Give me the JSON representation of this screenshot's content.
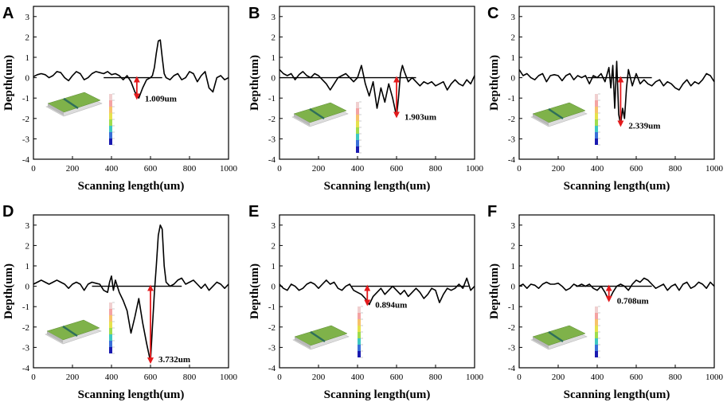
{
  "chart_data": [
    {
      "panel": "A",
      "type": "line",
      "xlabel": "Scanning length(um)",
      "ylabel": "Depth(um)",
      "xlim": [
        0,
        1000
      ],
      "ylim": [
        -4,
        3.5
      ],
      "xticks": [
        0,
        200,
        400,
        600,
        800,
        1000
      ],
      "yticks": [
        -4,
        -3,
        -2,
        -1,
        0,
        1,
        2,
        3
      ],
      "x": [
        0,
        20,
        40,
        60,
        80,
        100,
        120,
        140,
        160,
        180,
        200,
        220,
        240,
        260,
        280,
        300,
        320,
        340,
        360,
        380,
        400,
        420,
        440,
        460,
        480,
        500,
        520,
        540,
        560,
        580,
        600,
        610,
        620,
        630,
        640,
        650,
        660,
        670,
        680,
        700,
        720,
        740,
        760,
        780,
        800,
        820,
        840,
        860,
        880,
        900,
        920,
        940,
        960,
        980,
        1000
      ],
      "y": [
        0.05,
        0.15,
        0.2,
        0.15,
        0,
        0.1,
        0.3,
        0.25,
        0,
        -0.15,
        0.1,
        0.3,
        0.2,
        -0.1,
        0,
        0.2,
        0.3,
        0.25,
        0.2,
        0.3,
        0.15,
        0.2,
        0.1,
        -0.1,
        0.1,
        -0.2,
        -0.7,
        -1.0,
        -0.5,
        -0.1,
        0,
        0.1,
        0.5,
        1.2,
        1.8,
        1.85,
        1.0,
        0.2,
        0,
        -0.1,
        0.1,
        0.2,
        -0.1,
        0,
        0.3,
        0.2,
        -0.2,
        0.1,
        0.3,
        -0.5,
        -0.7,
        0,
        0.1,
        -0.1,
        0
      ],
      "baseline": {
        "x_start": 360,
        "x_end": 660,
        "y": 0
      },
      "annotation": {
        "label": "1.009um",
        "x": 530,
        "y_from": 0,
        "y_to": -1.009
      }
    },
    {
      "panel": "B",
      "type": "line",
      "xlabel": "Scanning length(um)",
      "ylabel": "Depth(um)",
      "xlim": [
        0,
        1000
      ],
      "ylim": [
        -4,
        3.5
      ],
      "xticks": [
        0,
        200,
        400,
        600,
        800,
        1000
      ],
      "yticks": [
        -4,
        -3,
        -2,
        -1,
        0,
        1,
        2,
        3
      ],
      "x": [
        0,
        20,
        40,
        60,
        80,
        100,
        120,
        140,
        160,
        180,
        200,
        220,
        240,
        260,
        280,
        300,
        320,
        340,
        360,
        380,
        400,
        420,
        440,
        460,
        480,
        500,
        520,
        540,
        560,
        580,
        600,
        610,
        620,
        630,
        640,
        660,
        680,
        700,
        720,
        740,
        760,
        780,
        800,
        820,
        840,
        860,
        880,
        900,
        920,
        940,
        960,
        980,
        1000
      ],
      "y": [
        0.4,
        0.2,
        0.1,
        0.2,
        -0.1,
        0.15,
        0.3,
        0.1,
        0,
        0.2,
        0.1,
        -0.1,
        -0.3,
        -0.6,
        -0.3,
        0,
        0.1,
        0.2,
        0,
        -0.2,
        0,
        0.6,
        -0.3,
        -0.9,
        -0.2,
        -1.5,
        -0.5,
        -1.2,
        -0.3,
        -1.0,
        -1.9,
        -1.0,
        0.2,
        0.6,
        0.3,
        -0.2,
        0,
        -0.2,
        -0.4,
        -0.2,
        -0.3,
        -0.2,
        -0.4,
        -0.3,
        -0.2,
        -0.6,
        -0.3,
        -0.1,
        -0.3,
        -0.4,
        -0.1,
        -0.3,
        0.1
      ],
      "baseline": {
        "x_start": 0,
        "x_end": 700,
        "y": 0
      },
      "annotation": {
        "label": "1.903um",
        "x": 600,
        "y_from": 0,
        "y_to": -1.903
      }
    },
    {
      "panel": "C",
      "type": "line",
      "xlabel": "Scanning length(um)",
      "ylabel": "Depth(um)",
      "xlim": [
        0,
        1000
      ],
      "ylim": [
        -4,
        3.5
      ],
      "xticks": [
        0,
        200,
        400,
        600,
        800,
        1000
      ],
      "yticks": [
        -4,
        -3,
        -2,
        -1,
        0,
        1,
        2,
        3
      ],
      "x": [
        0,
        20,
        40,
        60,
        80,
        100,
        120,
        140,
        160,
        180,
        200,
        220,
        240,
        260,
        280,
        300,
        320,
        340,
        360,
        380,
        400,
        420,
        440,
        460,
        470,
        480,
        490,
        500,
        510,
        520,
        530,
        540,
        550,
        560,
        580,
        600,
        620,
        640,
        660,
        680,
        700,
        720,
        740,
        760,
        780,
        800,
        820,
        840,
        860,
        880,
        900,
        920,
        940,
        960,
        980,
        1000
      ],
      "y": [
        0.4,
        0.1,
        0.2,
        0,
        -0.1,
        0.1,
        0.2,
        -0.2,
        0.1,
        0.15,
        0.1,
        -0.15,
        0.1,
        0.2,
        -0.1,
        0.1,
        0,
        0.1,
        -0.3,
        0.1,
        0,
        0.2,
        -0.2,
        0.5,
        -0.5,
        0.6,
        -1.5,
        0.8,
        -1.8,
        -2.3,
        -1.5,
        -2.0,
        -0.5,
        0.4,
        -0.4,
        0.2,
        -0.3,
        -0.1,
        -0.3,
        -0.4,
        -0.2,
        -0.1,
        -0.4,
        -0.2,
        -0.3,
        -0.5,
        -0.6,
        -0.3,
        -0.1,
        -0.4,
        -0.2,
        -0.3,
        -0.1,
        0.2,
        0.1,
        -0.2
      ],
      "baseline": {
        "x_start": 350,
        "x_end": 680,
        "y": 0
      },
      "annotation": {
        "label": "2.339um",
        "x": 520,
        "y_from": 0,
        "y_to": -2.339
      }
    },
    {
      "panel": "D",
      "type": "line",
      "xlabel": "Scanning length(um)",
      "ylabel": "Depth(um)",
      "xlim": [
        0,
        1000
      ],
      "ylim": [
        -4,
        3.5
      ],
      "xticks": [
        0,
        200,
        400,
        600,
        800,
        1000
      ],
      "yticks": [
        -4,
        -3,
        -2,
        -1,
        0,
        1,
        2,
        3
      ],
      "x": [
        0,
        20,
        40,
        60,
        80,
        100,
        120,
        140,
        160,
        180,
        200,
        220,
        240,
        260,
        280,
        300,
        320,
        340,
        360,
        380,
        390,
        400,
        410,
        420,
        440,
        460,
        480,
        500,
        520,
        540,
        560,
        580,
        600,
        610,
        620,
        630,
        640,
        650,
        660,
        670,
        680,
        700,
        720,
        740,
        760,
        780,
        800,
        820,
        840,
        860,
        880,
        900,
        920,
        940,
        960,
        980,
        1000
      ],
      "y": [
        0.1,
        0.2,
        0.3,
        0.2,
        0.1,
        0.2,
        0.3,
        0.2,
        0.1,
        -0.1,
        0.1,
        0.2,
        0.1,
        -0.2,
        0.1,
        0.2,
        0.15,
        0.1,
        -0.2,
        -0.3,
        0.2,
        0.5,
        -0.2,
        0.3,
        -0.3,
        -0.7,
        -1.2,
        -2.3,
        -1.5,
        -0.6,
        -1.8,
        -2.8,
        -3.7,
        -2.0,
        -0.3,
        1.0,
        2.5,
        3.0,
        2.8,
        1.0,
        0.2,
        0,
        0.1,
        0.3,
        0.4,
        0.1,
        0.2,
        0.3,
        0.1,
        -0.1,
        0.1,
        -0.2,
        0,
        0.2,
        0.1,
        -0.1,
        0.1
      ],
      "baseline": {
        "x_start": 300,
        "x_end": 760,
        "y": 0
      },
      "annotation": {
        "label": "3.732um",
        "x": 600,
        "y_from": 0,
        "y_to": -3.732
      }
    },
    {
      "panel": "E",
      "type": "line",
      "xlabel": "Scanning length(um)",
      "ylabel": "Depth(um)",
      "xlim": [
        0,
        1000
      ],
      "ylim": [
        -4,
        3.5
      ],
      "xticks": [
        0,
        200,
        400,
        600,
        800,
        1000
      ],
      "yticks": [
        -4,
        -3,
        -2,
        -1,
        0,
        1,
        2,
        3
      ],
      "x": [
        0,
        20,
        40,
        60,
        80,
        100,
        120,
        140,
        160,
        180,
        200,
        220,
        240,
        260,
        280,
        300,
        320,
        340,
        360,
        380,
        400,
        420,
        440,
        460,
        480,
        500,
        520,
        540,
        560,
        580,
        600,
        620,
        640,
        660,
        680,
        700,
        720,
        740,
        760,
        780,
        800,
        820,
        840,
        860,
        880,
        900,
        920,
        940,
        960,
        980,
        1000
      ],
      "y": [
        0.1,
        -0.1,
        -0.2,
        0.1,
        0,
        -0.2,
        -0.1,
        0.1,
        0.2,
        0.1,
        -0.1,
        0.1,
        0.3,
        0.1,
        0.2,
        -0.1,
        -0.2,
        0,
        0.1,
        -0.2,
        -0.3,
        -0.4,
        -0.6,
        -0.9,
        -0.5,
        -0.3,
        -0.1,
        -0.4,
        -0.2,
        0,
        -0.2,
        -0.4,
        -0.2,
        -0.5,
        -0.3,
        -0.1,
        -0.3,
        -0.6,
        -0.4,
        -0.1,
        -0.2,
        -0.8,
        -0.4,
        -0.1,
        -0.2,
        -0.1,
        0.1,
        -0.1,
        0.4,
        -0.2,
        0
      ],
      "baseline": {
        "x_start": 370,
        "x_end": 970,
        "y": 0
      },
      "annotation": {
        "label": "0.894um",
        "x": 450,
        "y_from": 0,
        "y_to": -0.894
      }
    },
    {
      "panel": "F",
      "type": "line",
      "xlabel": "Scanning length(um)",
      "ylabel": "Depth(um)",
      "xlim": [
        0,
        1000
      ],
      "ylim": [
        -4,
        3.5
      ],
      "xticks": [
        0,
        200,
        400,
        600,
        800,
        1000
      ],
      "yticks": [
        -4,
        -3,
        -2,
        -1,
        0,
        1,
        2,
        3
      ],
      "x": [
        0,
        20,
        40,
        60,
        80,
        100,
        120,
        140,
        160,
        180,
        200,
        220,
        240,
        260,
        280,
        300,
        320,
        340,
        360,
        380,
        400,
        420,
        440,
        460,
        480,
        500,
        520,
        540,
        560,
        580,
        600,
        620,
        640,
        660,
        680,
        700,
        720,
        740,
        760,
        780,
        800,
        820,
        840,
        860,
        880,
        900,
        920,
        940,
        960,
        980,
        1000
      ],
      "y": [
        0,
        0.1,
        -0.1,
        0.1,
        0.05,
        -0.1,
        0.1,
        0.2,
        0.1,
        0.1,
        0.15,
        0,
        -0.2,
        -0.1,
        0.1,
        0,
        0.1,
        0,
        0.1,
        -0.1,
        -0.2,
        0,
        -0.3,
        -0.7,
        -0.3,
        0,
        0.1,
        0,
        -0.2,
        0.1,
        0.3,
        0.2,
        0.4,
        0.3,
        0.1,
        -0.1,
        0,
        0.1,
        -0.2,
        0,
        0.1,
        -0.2,
        0.1,
        0.2,
        -0.1,
        0,
        0.2,
        0.1,
        -0.1,
        0.2,
        0
      ],
      "baseline": {
        "x_start": 290,
        "x_end": 680,
        "y": 0
      },
      "annotation": {
        "label": "0.708um",
        "x": 460,
        "y_from": 0,
        "y_to": -0.708
      }
    }
  ],
  "colors": {
    "curve": "#000000",
    "arrow": "#e41a1c",
    "axis": "#000000"
  }
}
